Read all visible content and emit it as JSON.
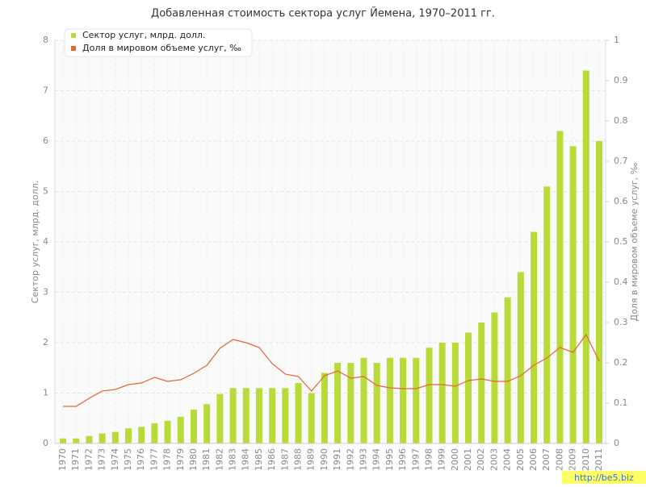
{
  "chart_data": {
    "type": "bar",
    "title": "Добавленная стоимость сектора услуг Йемена, 1970–2011 гг.",
    "y_label": "Сектор услуг, млрд. долл.",
    "y2_label": "Доля в мировом объеме услуг, ‰",
    "categories": [
      "1970",
      "1971",
      "1972",
      "1973",
      "1974",
      "1975",
      "1976",
      "1977",
      "1978",
      "1979",
      "1980",
      "1981",
      "1982",
      "1983",
      "1984",
      "1985",
      "1986",
      "1987",
      "1988",
      "1989",
      "1990",
      "1991",
      "1992",
      "1993",
      "1994",
      "1995",
      "1996",
      "1997",
      "1998",
      "1999",
      "2000",
      "2001",
      "2002",
      "2003",
      "2004",
      "2005",
      "2006",
      "2007",
      "2008",
      "2009",
      "2010",
      "2011"
    ],
    "series": [
      {
        "name": "Сектор услуг, млрд. долл.",
        "type": "bar",
        "color": "#b9db3a",
        "values": [
          0.1,
          0.1,
          0.15,
          0.2,
          0.23,
          0.3,
          0.33,
          0.4,
          0.45,
          0.53,
          0.67,
          0.78,
          0.98,
          1.1,
          1.1,
          1.1,
          1.1,
          1.1,
          1.2,
          1.0,
          1.4,
          1.6,
          1.6,
          1.7,
          1.6,
          1.7,
          1.7,
          1.7,
          1.9,
          2.0,
          2.0,
          2.2,
          2.4,
          2.6,
          2.9,
          3.4,
          4.2,
          5.1,
          6.2,
          5.9,
          7.4,
          6.0
        ]
      },
      {
        "name": "Доля в мировом объеме услуг, ‰",
        "type": "line",
        "axis": "y2",
        "color": "#e0653a",
        "values": [
          0.092,
          0.092,
          0.112,
          0.13,
          0.134,
          0.146,
          0.15,
          0.164,
          0.154,
          0.158,
          0.174,
          0.194,
          0.236,
          0.258,
          0.25,
          0.238,
          0.198,
          0.172,
          0.166,
          0.13,
          0.168,
          0.18,
          0.162,
          0.166,
          0.144,
          0.138,
          0.136,
          0.136,
          0.146,
          0.146,
          0.142,
          0.156,
          0.16,
          0.154,
          0.154,
          0.168,
          0.194,
          0.212,
          0.238,
          0.226,
          0.27,
          0.204
        ]
      }
    ],
    "ylim": [
      0,
      8
    ],
    "yticks": [
      0,
      1,
      2,
      3,
      4,
      5,
      6,
      7,
      8
    ],
    "y2lim": [
      0,
      1
    ],
    "y2ticks": [
      0,
      0.1,
      0.2,
      0.3,
      0.4,
      0.5,
      0.6,
      0.7,
      0.8,
      0.9,
      1
    ],
    "grid": true,
    "legend": "top-left"
  },
  "watermark": "http://be5.biz"
}
